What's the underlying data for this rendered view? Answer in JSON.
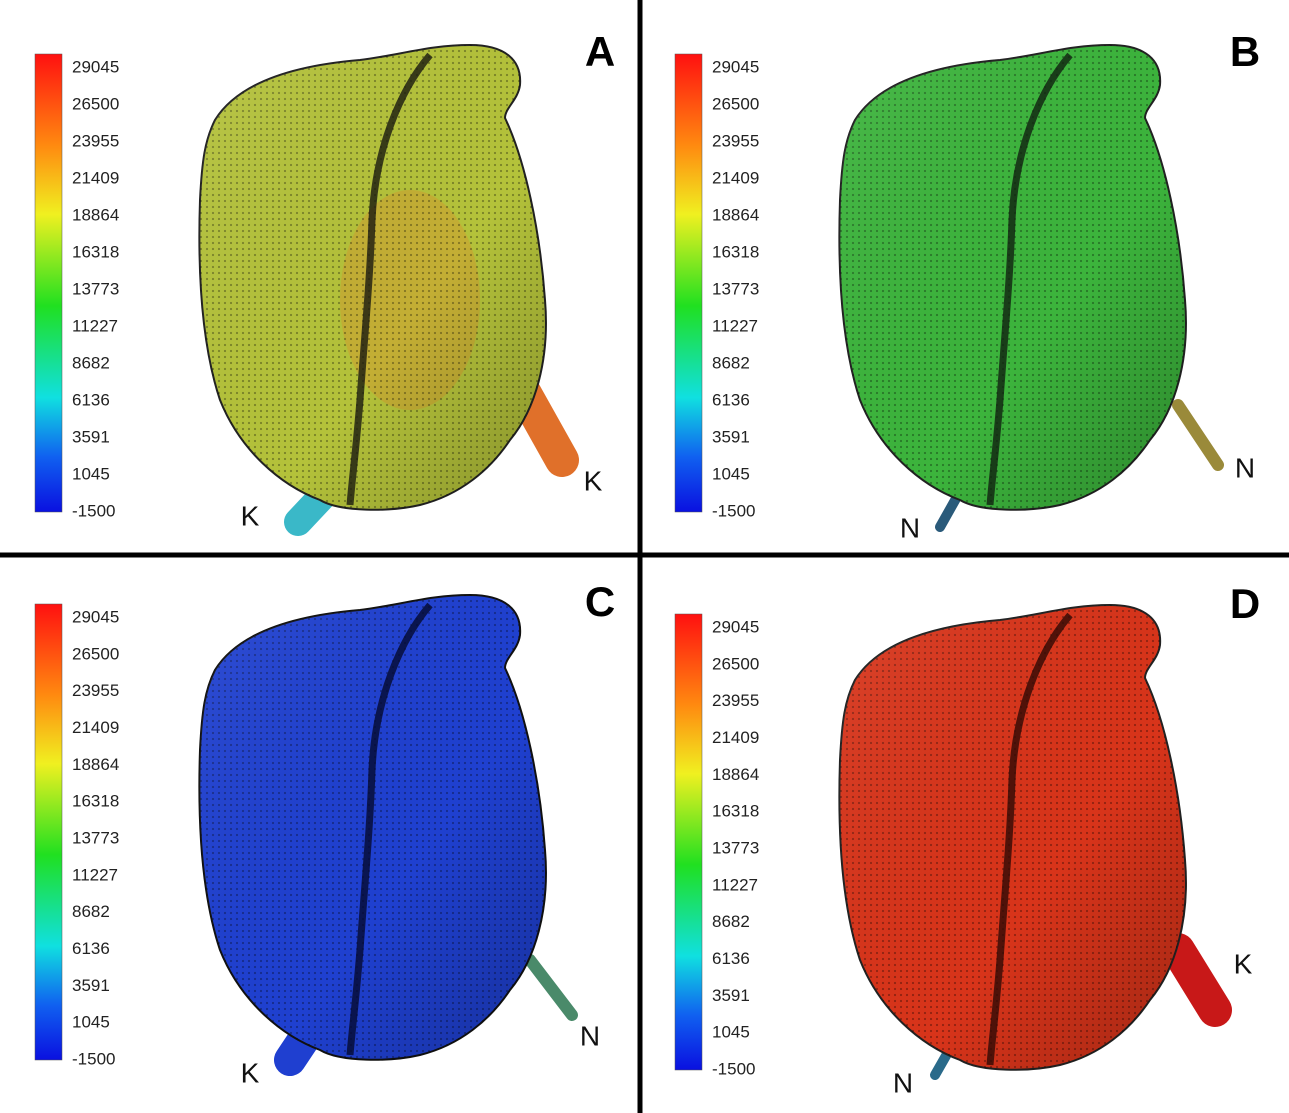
{
  "panels": [
    {
      "letter": "A",
      "colorbar_ticks": [
        "29045",
        "26500",
        "23955",
        "21409",
        "18864",
        "16318",
        "13773",
        "11227",
        "8682",
        "6136",
        "3591",
        "1045",
        "-1500"
      ],
      "pipe_labels": [
        "K",
        "K"
      ]
    },
    {
      "letter": "B",
      "colorbar_ticks": [
        "29045",
        "26500",
        "23955",
        "21409",
        "18864",
        "16318",
        "13773",
        "11227",
        "8682",
        "6136",
        "3591",
        "1045",
        "-1500"
      ],
      "pipe_labels": [
        "N",
        "N"
      ]
    },
    {
      "letter": "C",
      "colorbar_ticks": [
        "29045",
        "26500",
        "23955",
        "21409",
        "18864",
        "16318",
        "13773",
        "11227",
        "8682",
        "6136",
        "3591",
        "1045",
        "-1500"
      ],
      "pipe_labels": [
        "K",
        "N"
      ]
    },
    {
      "letter": "D",
      "colorbar_ticks": [
        "29045",
        "26500",
        "23955",
        "21409",
        "18864",
        "16318",
        "13773",
        "11227",
        "8682",
        "6136",
        "3591",
        "1045",
        "-1500"
      ],
      "pipe_labels": [
        "N",
        "K"
      ]
    }
  ]
}
